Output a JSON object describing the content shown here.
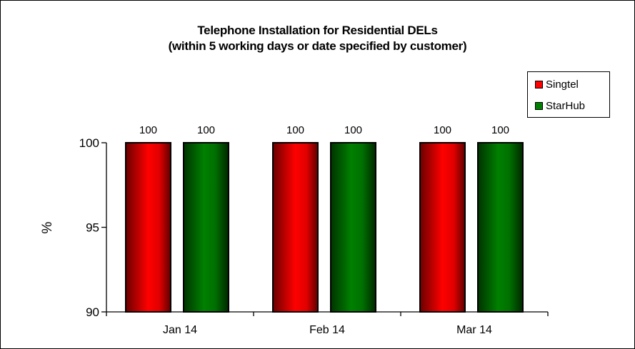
{
  "chart_data": {
    "type": "bar",
    "title": "Telephone Installation for Residential DELs",
    "subtitle": "(within 5 working days or date specified by customer)",
    "xlabel": "",
    "ylabel": "%",
    "ylim": [
      90,
      100
    ],
    "yticks": [
      90,
      95,
      100
    ],
    "grid": false,
    "legend_position": "top-right",
    "categories": [
      "Jan 14",
      "Feb 14",
      "Mar 14"
    ],
    "series": [
      {
        "name": "Singtel",
        "color": "#ff0000",
        "values": [
          100,
          100,
          100
        ]
      },
      {
        "name": "StarHub",
        "color": "#008000",
        "values": [
          100,
          100,
          100
        ]
      }
    ],
    "data_labels": true
  },
  "header": {
    "title": "Telephone Installation for Residential DELs",
    "subtitle": "(within 5 working days or date specified by customer)"
  },
  "legend": {
    "items": [
      {
        "label": "Singtel",
        "color": "#ff0000"
      },
      {
        "label": "StarHub",
        "color": "#008000"
      }
    ]
  },
  "axis": {
    "ylabel": "%",
    "yticks": [
      "90",
      "95",
      "100"
    ],
    "categories": [
      "Jan 14",
      "Feb 14",
      "Mar 14"
    ]
  }
}
